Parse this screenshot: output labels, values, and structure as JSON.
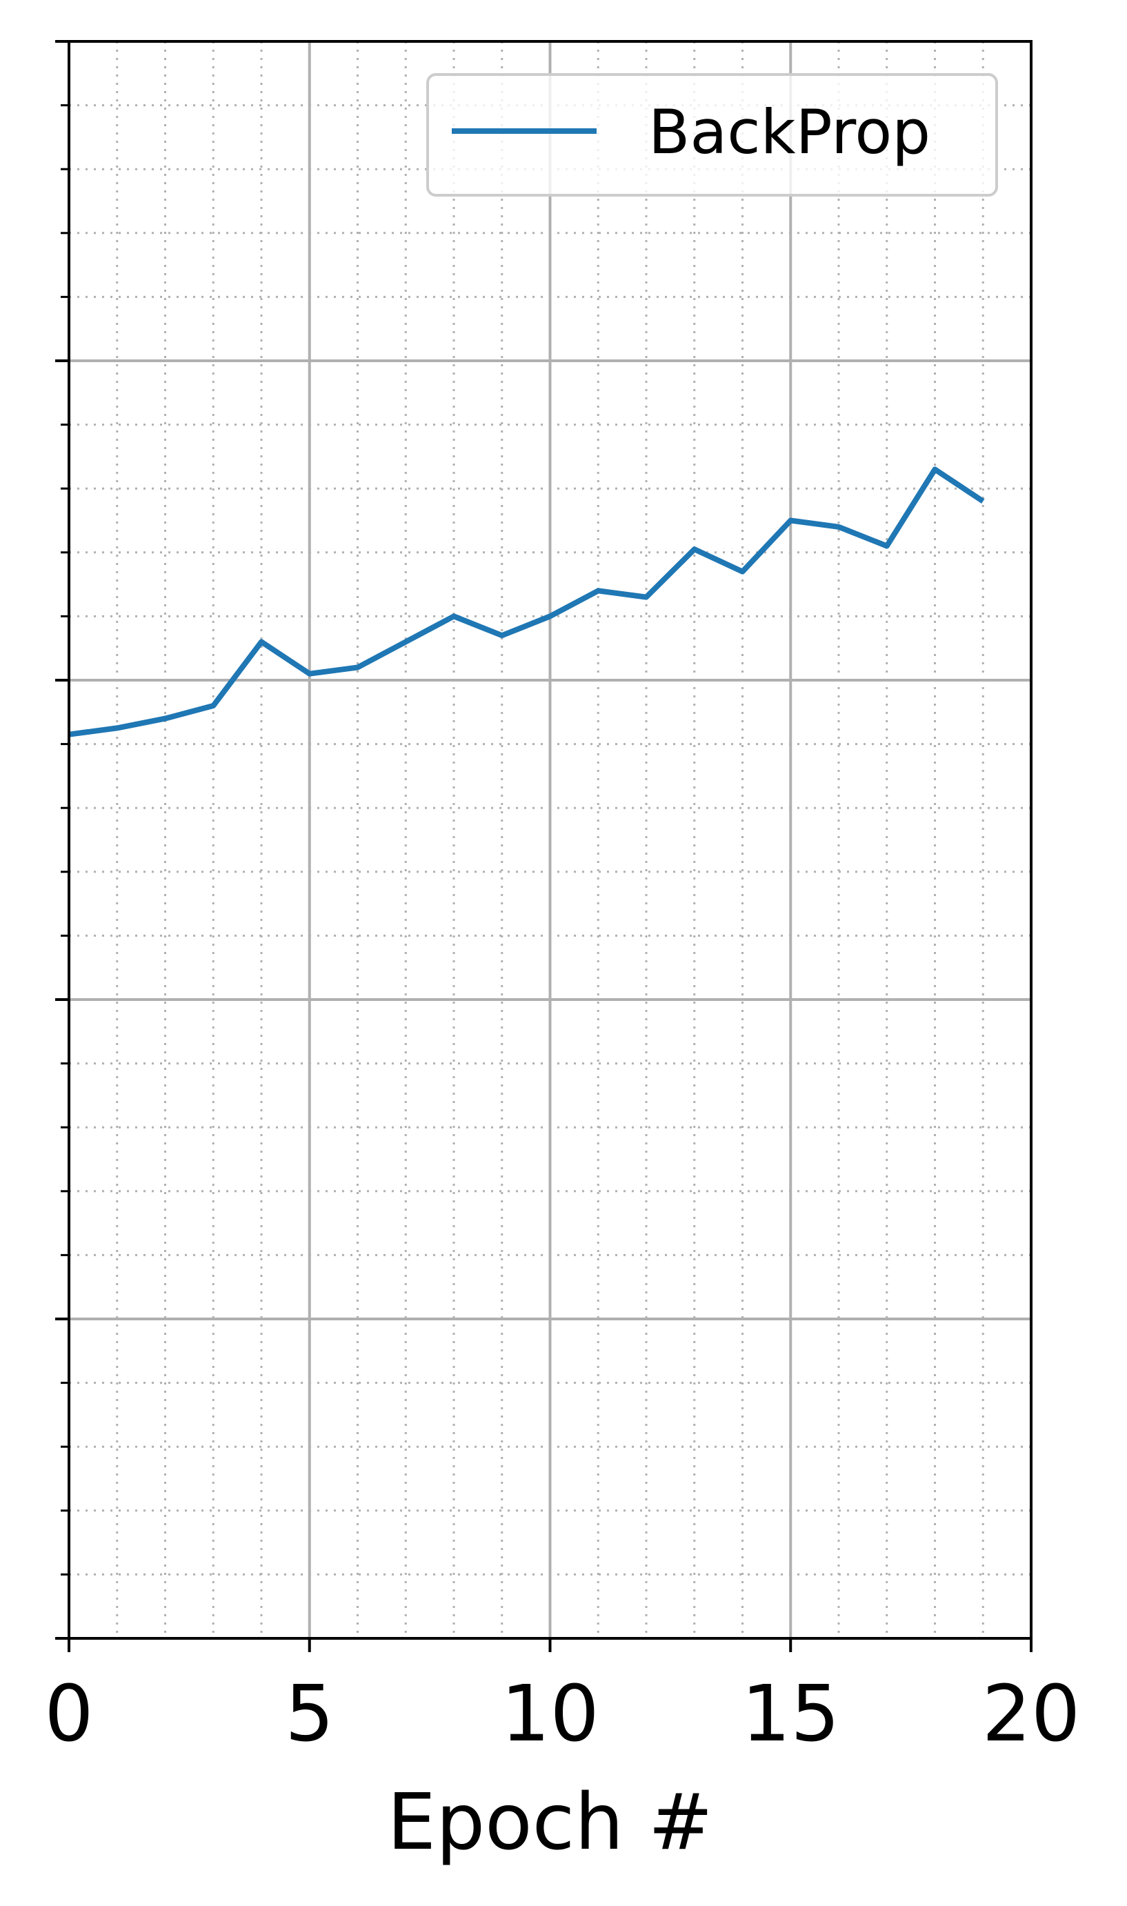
{
  "chart_data": {
    "type": "line",
    "title": "",
    "xlabel": "Epoch #",
    "ylabel": "",
    "xlim": [
      0,
      20
    ],
    "ylim": [
      0,
      5
    ],
    "xticks": [
      0,
      5,
      10,
      15,
      20
    ],
    "xtick_labels": [
      "0",
      "5",
      "10",
      "15",
      "20"
    ],
    "x_minor_step": 1,
    "yticks": [
      0,
      1,
      2,
      3,
      4,
      5
    ],
    "y_minor_step": 0.2,
    "grid": true,
    "legend_position": "top-right",
    "series": [
      {
        "name": "BackProp",
        "color": "#1f77b4",
        "x": [
          0,
          1,
          2,
          3,
          4,
          5,
          6,
          7,
          8,
          9,
          10,
          11,
          12,
          13,
          14,
          15,
          16,
          17,
          18,
          19
        ],
        "y": [
          2.83,
          2.85,
          2.88,
          2.92,
          3.12,
          3.02,
          3.04,
          3.12,
          3.2,
          3.14,
          3.2,
          3.28,
          3.26,
          3.41,
          3.34,
          3.5,
          3.48,
          3.42,
          3.66,
          3.56
        ]
      }
    ]
  }
}
